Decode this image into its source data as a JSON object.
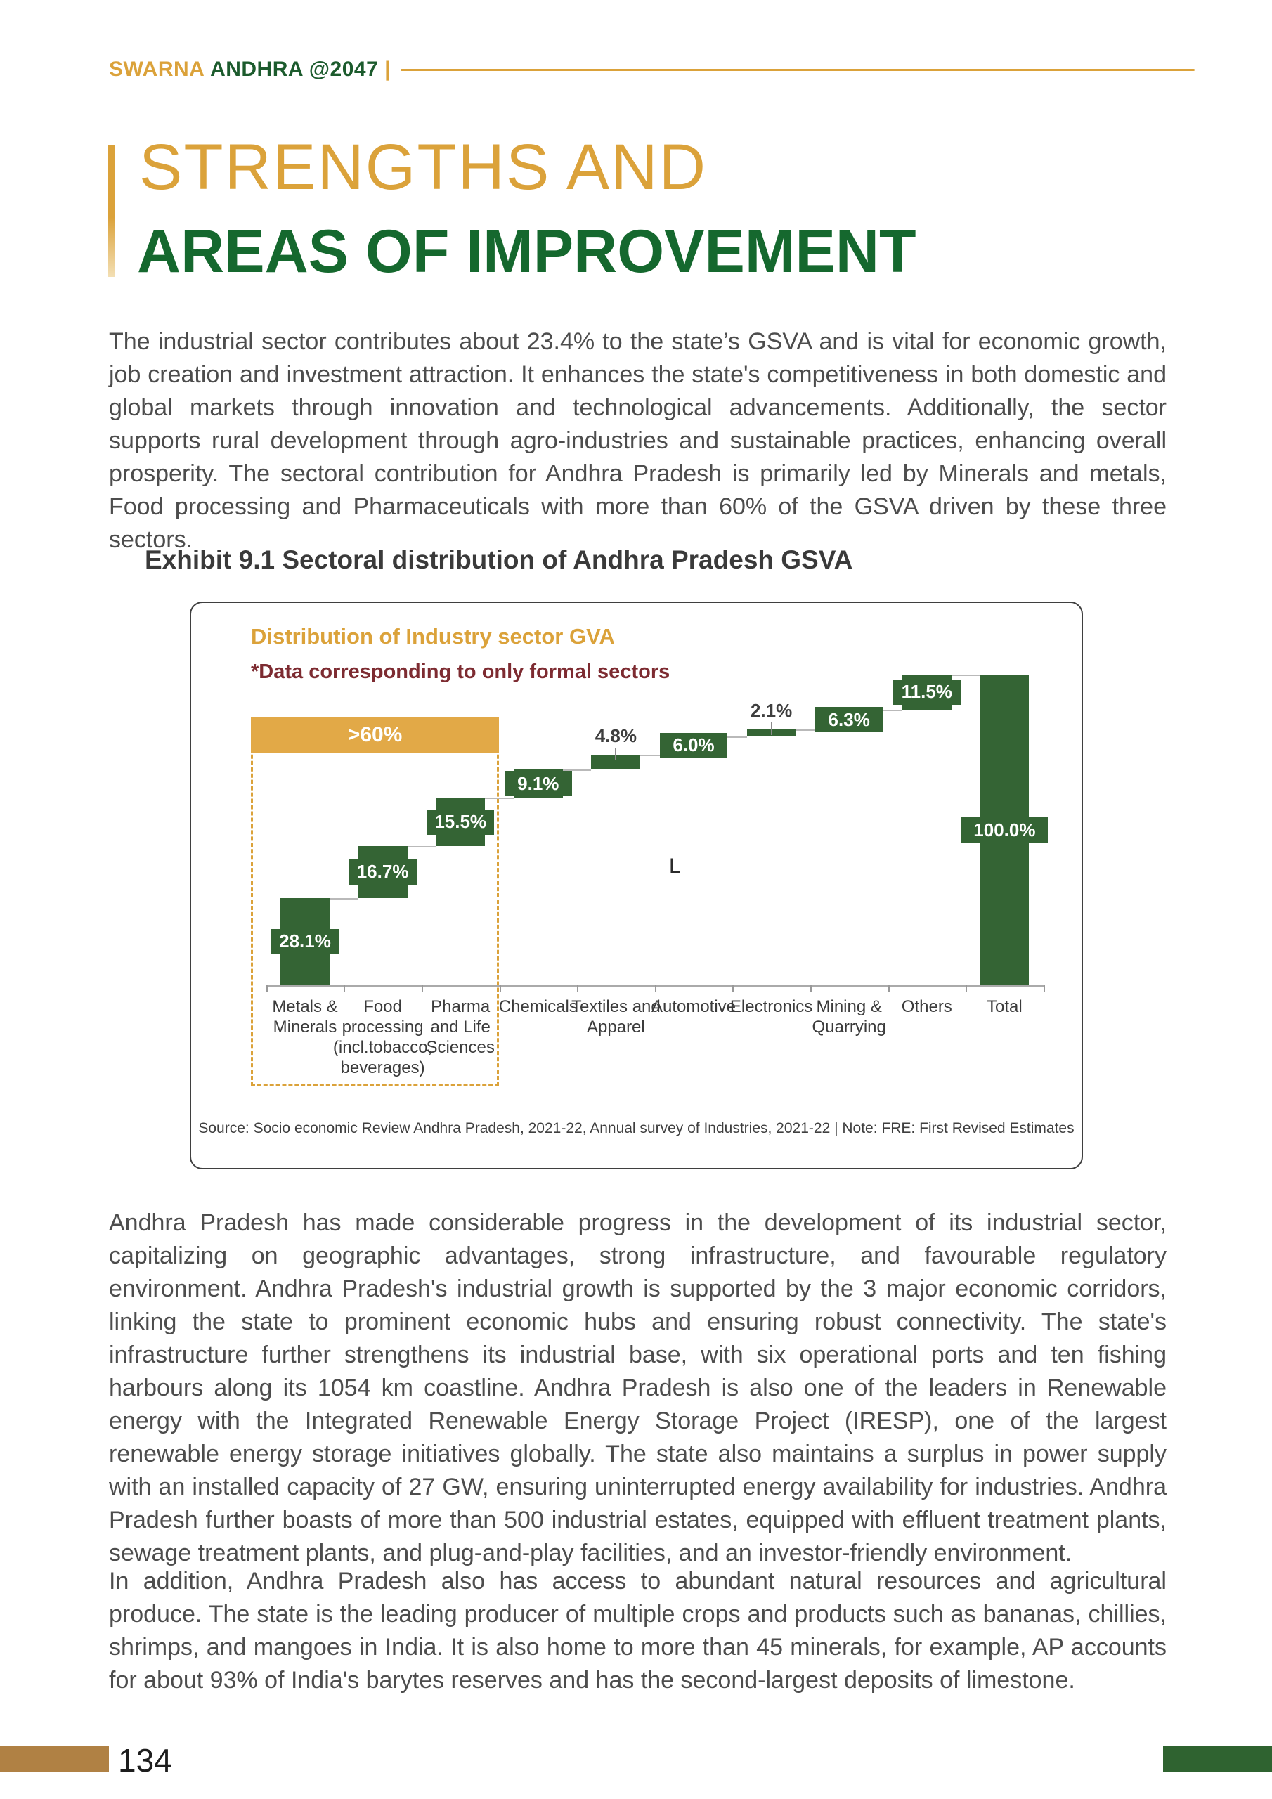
{
  "header": {
    "brand_gold": "SWARNA",
    "brand_green": " ANDHRA @2047 ",
    "separator": "|"
  },
  "title": {
    "line1": "STRENGTHS AND",
    "line2": "AREAS OF IMPROVEMENT"
  },
  "paragraphs": {
    "p1": "The industrial sector contributes about 23.4% to the state’s GSVA and is vital for economic growth, job creation and investment attraction. It enhances the state's competitiveness in both domestic and global markets through innovation and technological advancements. Additionally, the sector supports rural development through agro-industries and sustainable practices, enhancing overall prosperity. The sectoral contribution for Andhra Pradesh is primarily led by Minerals and metals, Food processing and Pharmaceuticals with more than 60% of the GSVA driven by these three sectors.",
    "p2": "Andhra Pradesh has made considerable progress in the development of its industrial sector, capitalizing on geographic advantages, strong infrastructure, and favourable regulatory environment. Andhra Pradesh's industrial growth is supported by the 3 major economic corridors, linking the state to prominent economic hubs and ensuring robust connectivity. The state's infrastructure further strengthens its industrial base, with six operational ports and ten fishing harbours along its 1054 km coastline. Andhra Pradesh is also one of the leaders in Renewable energy with the Integrated Renewable Energy Storage Project (IRESP), one of the largest renewable energy storage initiatives globally. The state also maintains a surplus in power supply with an installed capacity of 27 GW, ensuring uninterrupted energy availability for industries. Andhra Pradesh further boasts of more than 500 industrial estates, equipped with effluent treatment plants, sewage treatment plants, and plug-and-play facilities, and an investor-friendly environment.",
    "p3": "In addition, Andhra Pradesh also has access to abundant natural resources and agricultural produce. The state is the leading producer of multiple crops and products such as bananas, chillies, shrimps, and mangoes in India. It is also home to more than 45 minerals, for example, AP accounts for about 93% of India's barytes reserves and has the second-largest deposits of limestone."
  },
  "exhibit_heading": "Exhibit 9.1 Sectoral distribution of Andhra Pradesh GSVA",
  "chart_data": {
    "type": "bar",
    "subtype": "waterfall",
    "title": "Distribution of Industry sector GVA",
    "note": "*Data corresponding to only formal sectors",
    "categories": [
      "Metals & Minerals",
      "Food processing (incl.tobacco, beverages)",
      "Pharma and Life Sciences",
      "Chemicals",
      "Textiles and Apparel",
      "Automotive",
      "Electronics",
      "Mining & Quarrying",
      "Others",
      "Total"
    ],
    "category_lines": [
      [
        "Metals &",
        "Minerals"
      ],
      [
        "Food",
        "processing",
        "(incl.tobacco,",
        "beverages)"
      ],
      [
        "Pharma",
        "and Life",
        "Sciences"
      ],
      [
        "Chemicals"
      ],
      [
        "Textiles and",
        "Apparel"
      ],
      [
        "Automotive"
      ],
      [
        "Electronics"
      ],
      [
        "Mining &",
        "Quarrying"
      ],
      [
        "Others"
      ],
      [
        "Total"
      ]
    ],
    "values": [
      28.1,
      16.7,
      15.5,
      9.1,
      4.8,
      6.0,
      2.1,
      6.3,
      11.5
    ],
    "value_labels": [
      "28.1%",
      "16.7%",
      "15.5%",
      "9.1%",
      "4.8%",
      "6.0%",
      "2.1%",
      "6.3%",
      "11.5%"
    ],
    "total_value": 100.0,
    "total_label": "100.0%",
    "ylim": [
      0,
      100
    ],
    "grid": false,
    "legend": "none",
    "highlight": {
      "label": ">60%",
      "covers_first_n": 3
    },
    "stray_label": "L",
    "source": "Source: Socio economic Review Andhra Pradesh, 2021-22, Annual survey of Industries, 2021-22 | Note: FRE: First Revised Estimates"
  },
  "footer": {
    "page_number": "134"
  },
  "colors": {
    "gold": "#DBA23A",
    "highlight_gold": "#E2A947",
    "brand_green": "#1C5B2D",
    "title_green": "#15682E",
    "bar_green": "#346434",
    "maroon": "#7D2B31",
    "tan_bar": "#B08144",
    "footer_green": "#2F6330",
    "connector_gray": "#b9b9b9",
    "axis_gray": "#aaaaaa"
  }
}
